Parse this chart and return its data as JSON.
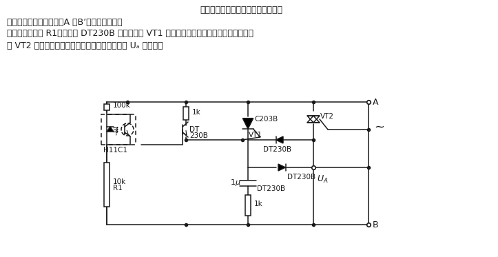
{
  "title_lines": [
    "所示电路中，当光电耦合器输出侧截",
    "止，在交流电压负半周（A 、B’）时，电源正端",
    "电压便经过电阱 R1、二极管 DT230B 加至晶阀管 VT1 的门极，使其导通，并进而使双向晶阀",
    "管 VT2 导通接通负载电源。反之，则关断。图中 Uₐ 接负载。"
  ],
  "bg_color": "#ffffff",
  "line_color": "#1a1a1a",
  "text_color": "#1a1a1a"
}
